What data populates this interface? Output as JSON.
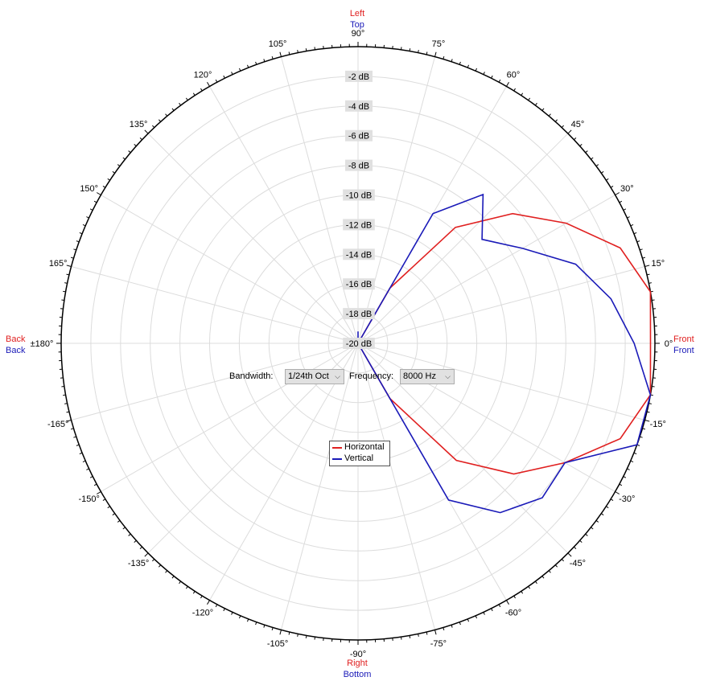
{
  "chart_data": {
    "type": "polar-line",
    "radial_unit": "dB",
    "rlim": [
      -20,
      0
    ],
    "radial_ticks": [
      "-2 dB",
      "-4 dB",
      "-6 dB",
      "-8 dB",
      "-10 dB",
      "-12 dB",
      "-14 dB",
      "-16 dB",
      "-18 dB",
      "-20 dB"
    ],
    "radial_tick_values": [
      -2,
      -4,
      -6,
      -8,
      -10,
      -12,
      -14,
      -16,
      -18,
      -20
    ],
    "angle_ticks": [
      {
        "deg": 90,
        "label": "90°"
      },
      {
        "deg": 75,
        "label": "75°"
      },
      {
        "deg": 60,
        "label": "60°"
      },
      {
        "deg": 45,
        "label": "45°"
      },
      {
        "deg": 30,
        "label": "30°"
      },
      {
        "deg": 15,
        "label": "15°"
      },
      {
        "deg": 0,
        "label": "0°"
      },
      {
        "deg": -15,
        "label": "-15°"
      },
      {
        "deg": -30,
        "label": "-30°"
      },
      {
        "deg": -45,
        "label": "-45°"
      },
      {
        "deg": -60,
        "label": "-60°"
      },
      {
        "deg": -75,
        "label": "-75°"
      },
      {
        "deg": -90,
        "label": "-90°"
      },
      {
        "deg": -105,
        "label": "-105°"
      },
      {
        "deg": -120,
        "label": "-120°"
      },
      {
        "deg": -135,
        "label": "-135°"
      },
      {
        "deg": -150,
        "label": "-150°"
      },
      {
        "deg": -165,
        "label": "-165°"
      },
      {
        "deg": 180,
        "label": "±180°"
      },
      {
        "deg": 165,
        "label": "165°"
      },
      {
        "deg": 150,
        "label": "150°"
      },
      {
        "deg": 135,
        "label": "135°"
      },
      {
        "deg": 120,
        "label": "120°"
      },
      {
        "deg": 105,
        "label": "105°"
      }
    ],
    "grid": true,
    "direction_labels": {
      "top": {
        "horizontal": "Left",
        "vertical": "Top"
      },
      "bottom": {
        "horizontal": "Right",
        "vertical": "Bottom"
      },
      "right": {
        "horizontal": "Front",
        "vertical": "Front"
      },
      "left": {
        "horizontal": "Back",
        "vertical": "Back"
      }
    },
    "angles": [
      0,
      10,
      20,
      30,
      40,
      50,
      60,
      70,
      80,
      90,
      100,
      110,
      120,
      130,
      140,
      150,
      160,
      170,
      180,
      -170,
      -160,
      -150,
      -140,
      -130,
      -120,
      -110,
      -100,
      -90,
      -80,
      -70,
      -60,
      -50,
      -40,
      -30,
      -20,
      -10
    ],
    "series": [
      {
        "name": "Horizontal",
        "color": "#e02020",
        "values": [
          -0.3,
          0,
          -1.2,
          -3.8,
          -6.4,
          -9.8,
          -15.7,
          -20,
          -20,
          -20,
          -20,
          -20,
          -20,
          -20,
          -20,
          -20,
          -20,
          -20,
          -20,
          -20,
          -20,
          -20,
          -20,
          -20,
          -20,
          -20,
          -20,
          -20,
          -20,
          -20,
          -15.7,
          -9.7,
          -6.3,
          -3.9,
          -1.2,
          0
        ]
      },
      {
        "name": "Vertical",
        "color": "#1a1ab8",
        "values": [
          -1.4,
          -2.7,
          -4.4,
          -7.2,
          -9.1,
          -6.9,
          -9.9,
          -20,
          -20,
          -19.2,
          -20,
          -20,
          -20,
          -20,
          -20,
          -19.7,
          -20,
          -20,
          -20,
          -20,
          -20,
          -20,
          -20,
          -20,
          -20,
          -20,
          -20,
          -20,
          -20,
          -20,
          -7.8,
          -5.1,
          -3.8,
          -3.9,
          0,
          0
        ]
      }
    ],
    "legend_placement": "center-below"
  },
  "controls": {
    "bandwidth_label": "Bandwidth:",
    "bandwidth_value": "1/24th Oct",
    "frequency_label": "Frequency:",
    "frequency_value": "8000 Hz",
    "chevron": "⌵"
  },
  "legend": {
    "horizontal": "Horizontal",
    "vertical": "Vertical"
  },
  "colors": {
    "horizontal": "#e02020",
    "vertical": "#1a1ab8",
    "grid": "#dcdcdc",
    "axis": "#000000",
    "db_label_bg": "#e0e0e0"
  }
}
